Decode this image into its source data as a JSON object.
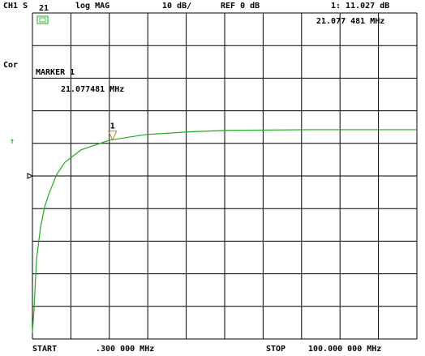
{
  "chart_data": {
    "type": "line",
    "channel": "CH1 S",
    "parameter": "21",
    "format": "log MAG",
    "scale": "10 dB/",
    "reference": "REF 0 dB",
    "marker_readout": "1: 11.027 dB",
    "marker_freq": "21.077 481 MHz",
    "correction": "Cor",
    "marker_title": "MARKER 1",
    "marker_detail": "21.077481 MHz",
    "start_label": "START",
    "start_freq": ".300 000 MHz",
    "stop_label": "STOP",
    "stop_freq": "100.000 000 MHz",
    "status_arrow": "↑",
    "reference_level": 0,
    "x": [
      0.3,
      0.72,
      1.35,
      2.4,
      3.46,
      4.5,
      6.6,
      8.7,
      12.9,
      20.3,
      29.7,
      40.3,
      50.8,
      71.8,
      100
    ],
    "series": [
      {
        "color": "#22aa22",
        "values": [
          -48,
          -40.6,
          -25.6,
          -15.7,
          -9.5,
          -5.7,
          0.5,
          4.2,
          8,
          11,
          12.7,
          13.5,
          14,
          14.2,
          14.2
        ]
      }
    ],
    "marker": {
      "label": "1",
      "x": 21.077481,
      "y": 11.027,
      "color": "#c08020"
    },
    "xlim": [
      0.3,
      100
    ],
    "xticks": [
      0.3,
      10.27,
      20.24,
      30.21,
      40.18,
      50.15,
      60.12,
      70.09,
      80.06,
      90.03,
      100
    ],
    "ylim": [
      -50,
      50
    ],
    "yticks": [
      -50,
      -40,
      -30,
      -20,
      -10,
      0,
      10,
      20,
      30,
      40,
      50
    ],
    "grid": true
  }
}
